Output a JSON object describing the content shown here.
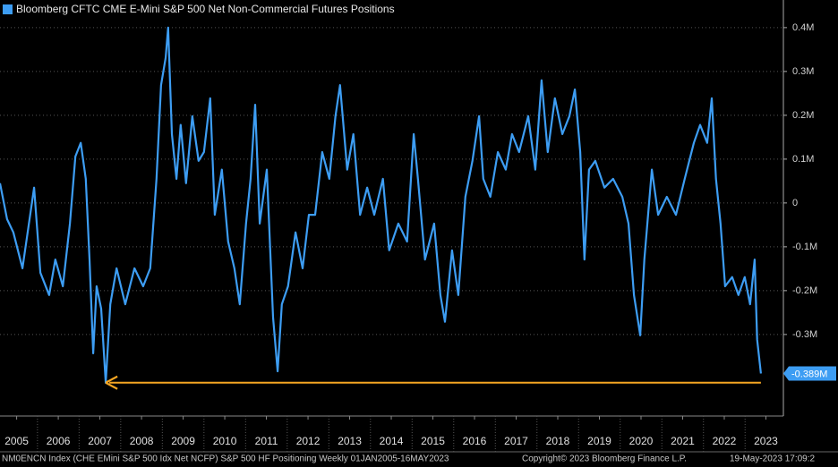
{
  "chart_data": {
    "type": "line",
    "title": "Bloomberg CFTC CME E-Mini S&P 500 Net Non-Commercial Futures Positions",
    "x": [
      2005.1,
      2005.27,
      2005.42,
      2005.64,
      2005.92,
      2006.07,
      2006.28,
      2006.43,
      2006.61,
      2006.78,
      2006.91,
      2007.04,
      2007.16,
      2007.25,
      2007.34,
      2007.42,
      2007.53,
      2007.64,
      2007.75,
      2007.9,
      2008.11,
      2008.33,
      2008.54,
      2008.71,
      2008.86,
      2008.97,
      2009.08,
      2009.14,
      2009.23,
      2009.34,
      2009.44,
      2009.57,
      2009.72,
      2009.87,
      2010.0,
      2010.15,
      2010.26,
      2010.43,
      2010.58,
      2010.73,
      2010.86,
      2011.01,
      2011.12,
      2011.23,
      2011.34,
      2011.51,
      2011.66,
      2011.77,
      2011.87,
      2012.02,
      2012.2,
      2012.37,
      2012.52,
      2012.67,
      2012.84,
      2013.01,
      2013.16,
      2013.27,
      2013.44,
      2013.59,
      2013.75,
      2013.92,
      2014.09,
      2014.3,
      2014.45,
      2014.67,
      2014.88,
      2015.04,
      2015.14,
      2015.31,
      2015.53,
      2015.68,
      2015.79,
      2015.96,
      2016.11,
      2016.28,
      2016.45,
      2016.61,
      2016.71,
      2016.88,
      2017.06,
      2017.25,
      2017.4,
      2017.57,
      2017.79,
      2017.96,
      2018.11,
      2018.26,
      2018.43,
      2018.61,
      2018.78,
      2018.91,
      2019.04,
      2019.14,
      2019.25,
      2019.4,
      2019.62,
      2019.83,
      2020.05,
      2020.2,
      2020.33,
      2020.48,
      2020.58,
      2020.76,
      2020.91,
      2021.12,
      2021.34,
      2021.55,
      2021.77,
      2021.92,
      2022.09,
      2022.2,
      2022.3,
      2022.41,
      2022.52,
      2022.69,
      2022.84,
      2022.99,
      2023.12,
      2023.23,
      2023.29,
      2023.38
    ],
    "series": [
      {
        "name": "Bloomberg CFTC CME E-Mini S&P 500 Net Non-Commercial Futures Positions",
        "color": "#3d9df3",
        "values": [
          0.045,
          -0.037,
          -0.067,
          -0.149,
          0.035,
          -0.159,
          -0.21,
          -0.129,
          -0.19,
          -0.047,
          0.106,
          0.137,
          0.055,
          -0.129,
          -0.343,
          -0.19,
          -0.241,
          -0.41,
          -0.231,
          -0.149,
          -0.231,
          -0.149,
          -0.19,
          -0.149,
          0.055,
          0.269,
          0.331,
          0.4,
          0.157,
          0.055,
          0.178,
          0.045,
          0.198,
          0.096,
          0.116,
          0.239,
          -0.027,
          0.076,
          -0.088,
          -0.149,
          -0.231,
          -0.047,
          0.055,
          0.224,
          -0.047,
          0.076,
          -0.261,
          -0.384,
          -0.231,
          -0.19,
          -0.067,
          -0.149,
          -0.027,
          -0.027,
          0.116,
          0.055,
          0.198,
          0.269,
          0.076,
          0.157,
          -0.027,
          0.035,
          -0.027,
          0.055,
          -0.108,
          -0.047,
          -0.088,
          0.157,
          0.055,
          -0.129,
          -0.047,
          -0.21,
          -0.271,
          -0.108,
          -0.21,
          0.014,
          0.096,
          0.198,
          0.055,
          0.014,
          0.116,
          0.076,
          0.157,
          0.116,
          0.198,
          0.076,
          0.28,
          0.116,
          0.239,
          0.157,
          0.198,
          0.259,
          0.116,
          -0.129,
          0.076,
          0.096,
          0.035,
          0.055,
          0.014,
          -0.047,
          -0.21,
          -0.302,
          -0.129,
          0.076,
          -0.027,
          0.014,
          -0.027,
          0.055,
          0.137,
          0.178,
          0.137,
          0.239,
          0.055,
          -0.047,
          -0.19,
          -0.169,
          -0.21,
          -0.169,
          -0.231,
          -0.129,
          -0.312,
          -0.389
        ]
      }
    ],
    "annotation": {
      "value": -0.389,
      "label": "-0.389M"
    },
    "xlim": [
      2005.1,
      2023.92
    ],
    "xticks": [
      {
        "value": 2005.5,
        "label": "2005"
      },
      {
        "value": 2006.5,
        "label": "2006"
      },
      {
        "value": 2007.5,
        "label": "2007"
      },
      {
        "value": 2008.5,
        "label": "2008"
      },
      {
        "value": 2009.5,
        "label": "2009"
      },
      {
        "value": 2010.5,
        "label": "2010"
      },
      {
        "value": 2011.5,
        "label": "2011"
      },
      {
        "value": 2012.5,
        "label": "2012"
      },
      {
        "value": 2013.5,
        "label": "2013"
      },
      {
        "value": 2014.5,
        "label": "2014"
      },
      {
        "value": 2015.5,
        "label": "2015"
      },
      {
        "value": 2016.5,
        "label": "2016"
      },
      {
        "value": 2017.5,
        "label": "2017"
      },
      {
        "value": 2018.5,
        "label": "2018"
      },
      {
        "value": 2019.5,
        "label": "2019"
      },
      {
        "value": 2020.5,
        "label": "2020"
      },
      {
        "value": 2021.5,
        "label": "2021"
      },
      {
        "value": 2022.5,
        "label": "2022"
      },
      {
        "value": 2023.5,
        "label": "2023"
      }
    ],
    "ylim": [
      -0.486,
      0.463
    ],
    "yticks": [
      {
        "value": 0.4,
        "label": "0.4M"
      },
      {
        "value": 0.3,
        "label": "0.3M"
      },
      {
        "value": 0.2,
        "label": "0.2M"
      },
      {
        "value": 0.1,
        "label": "0.1M"
      },
      0,
      {
        "value": -0.1,
        "label": "-0.1M"
      },
      {
        "value": -0.2,
        "label": "-0.2M"
      },
      {
        "value": -0.3,
        "label": "-0.3M"
      }
    ],
    "grid": true
  },
  "footer": {
    "left": "NM0ENCN Index (CHE EMini S&P 500 Idx Net NCFP) S&P 500 HF Positioning  Weekly 01JAN2005-16MAY2023",
    "center": "Copyright© 2023 Bloomberg Finance L.P.",
    "right": "19-May-2023 17:09:2"
  }
}
